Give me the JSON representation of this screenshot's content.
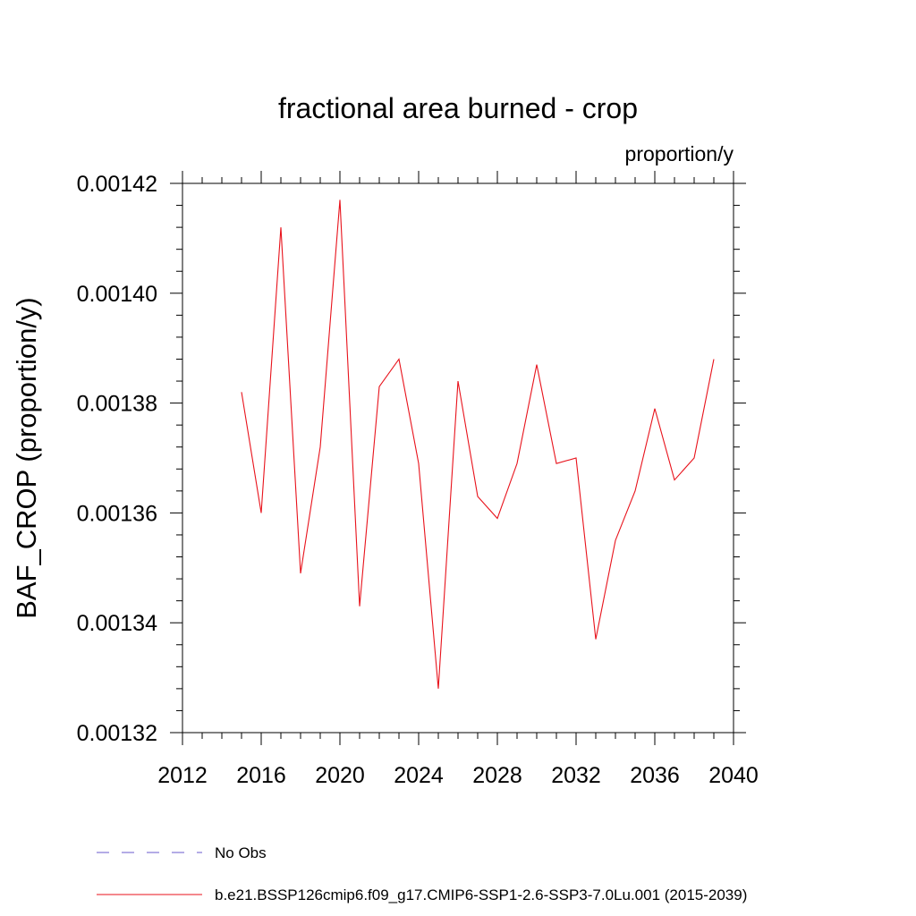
{
  "chart_data": {
    "type": "line",
    "title": "fractional area burned - crop",
    "units": "proportion/y",
    "ylabel": "BAF_CROP  (proportion/y)",
    "xlabel": "",
    "xlim": [
      2012,
      2040
    ],
    "ylim": [
      0.00132,
      0.00142
    ],
    "x_ticks": [
      2012,
      2016,
      2020,
      2024,
      2028,
      2032,
      2036,
      2040
    ],
    "x_tick_labels": [
      "2012",
      "2016",
      "2020",
      "2024",
      "2028",
      "2032",
      "2036",
      "2040"
    ],
    "x_minor_step": 1,
    "y_ticks": [
      0.00132,
      0.00134,
      0.00136,
      0.00138,
      0.0014,
      0.00142
    ],
    "y_tick_labels": [
      "0.00132",
      "0.00134",
      "0.00136",
      "0.00138",
      "0.00140",
      "0.00142"
    ],
    "y_minor_step": 4e-06,
    "grid": false,
    "series": [
      {
        "name": "b.e21.BSSP126cmip6.f09_g17.CMIP6-SSP1-2.6-SSP3-7.0Lu.001 (2015-2039)",
        "color": "#e8121b",
        "style": "solid",
        "x": [
          2015,
          2016,
          2017,
          2018,
          2019,
          2020,
          2021,
          2022,
          2023,
          2024,
          2025,
          2026,
          2027,
          2028,
          2029,
          2030,
          2031,
          2032,
          2033,
          2034,
          2035,
          2036,
          2037,
          2038,
          2039
        ],
        "values": [
          0.001382,
          0.00136,
          0.001412,
          0.001349,
          0.001372,
          0.001417,
          0.001343,
          0.001383,
          0.001388,
          0.001369,
          0.001328,
          0.001384,
          0.001363,
          0.001359,
          0.001369,
          0.001387,
          0.001369,
          0.00137,
          0.001337,
          0.001355,
          0.001364,
          0.001379,
          0.001366,
          0.00137,
          0.001388
        ]
      }
    ],
    "legend": {
      "placement": "bottom-left",
      "entries": [
        {
          "label": "No Obs",
          "color": "#6a5acd",
          "style": "dashed"
        },
        {
          "label": "b.e21.BSSP126cmip6.f09_g17.CMIP6-SSP1-2.6-SSP3-7.0Lu.001 (2015-2039)",
          "color": "#e8121b",
          "style": "solid"
        }
      ]
    }
  }
}
